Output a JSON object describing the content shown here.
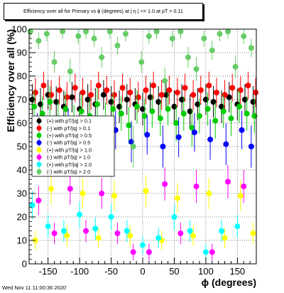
{
  "chart_data": {
    "type": "scatter",
    "title": "Efficiency over all for Primary vs ϕ (degrees) at | η | <= 1.0 at pT > 0.11",
    "xlabel": "ϕ (degrees)",
    "ylabel": "Efficiency over all (%)",
    "xlim": [
      -180,
      180
    ],
    "ylim": [
      0,
      100
    ],
    "x_ticks": [
      -150,
      -100,
      -50,
      0,
      50,
      100,
      150
    ],
    "y_ticks": [
      0,
      10,
      20,
      30,
      40,
      50,
      60,
      70,
      80,
      90,
      100
    ],
    "grid": true,
    "legend_position": "middle-left",
    "footer": "Wed Nov 11 11:00:36 2020",
    "series": [
      {
        "name": "(+) with pT/|q| > 0.1",
        "color": "#000000",
        "marker": "circle",
        "x": [
          -175,
          -162,
          -150,
          -137,
          -125,
          -112,
          -100,
          -87,
          -75,
          -62,
          -50,
          -37,
          -25,
          -12,
          0,
          12,
          25,
          37,
          50,
          62,
          75,
          87,
          100,
          112,
          125,
          137,
          150,
          162,
          175
        ],
        "y": [
          70,
          68,
          72,
          69,
          67,
          71,
          66,
          70,
          68,
          72,
          69,
          67,
          70,
          68,
          66,
          71,
          69,
          72,
          67,
          70,
          65,
          68,
          70,
          69,
          67,
          71,
          68,
          70,
          69
        ]
      },
      {
        "name": "(-) with pT/|q| > 0.1",
        "color": "#ff0000",
        "marker": "circle",
        "x": [
          -170,
          -157,
          -145,
          -132,
          -120,
          -107,
          -95,
          -82,
          -70,
          -57,
          -45,
          -32,
          -20,
          -7,
          5,
          17,
          30,
          42,
          55,
          67,
          80,
          92,
          105,
          117,
          130,
          142,
          155,
          167,
          179
        ],
        "y": [
          73,
          76,
          72,
          74,
          71,
          75,
          73,
          72,
          76,
          74,
          72,
          75,
          73,
          71,
          74,
          76,
          72,
          74,
          73,
          75,
          72,
          74,
          76,
          73,
          72,
          75,
          74,
          76,
          73
        ]
      },
      {
        "name": "(+) with pT/|q| > 0.5",
        "color": "#00cc00",
        "marker": "circle",
        "x": [
          -172,
          -159,
          -147,
          -134,
          -122,
          -109,
          -97,
          -84,
          -72,
          -59,
          -47,
          -34,
          -22,
          -9,
          3,
          15,
          28,
          40,
          53,
          65,
          78,
          90,
          103,
          115,
          128,
          140,
          153,
          165,
          177
        ],
        "y": [
          67,
          64,
          69,
          62,
          66,
          60,
          65,
          63,
          68,
          61,
          66,
          64,
          59,
          67,
          63,
          65,
          62,
          66,
          60,
          64,
          58,
          63,
          66,
          61,
          65,
          62,
          67,
          64,
          63
        ]
      },
      {
        "name": "(-) with pT/|q| > 0.5",
        "color": "#0000ff",
        "marker": "circle",
        "x": [
          -167,
          -143,
          -118,
          -93,
          -68,
          -43,
          -18,
          7,
          32,
          57,
          82,
          107,
          132,
          157,
          172
        ],
        "y": [
          56,
          54,
          58,
          55,
          53,
          57,
          52,
          55,
          50,
          54,
          56,
          53,
          51,
          57,
          50
        ]
      },
      {
        "name": "(+) with pT/|q| > 1.0",
        "color": "#ffff00",
        "marker": "circle",
        "x": [
          -170,
          -145,
          -120,
          -95,
          -70,
          -45,
          -20,
          5,
          30,
          55,
          80,
          105,
          130,
          155,
          175
        ],
        "y": [
          10,
          32,
          12,
          30,
          11,
          29,
          12,
          31,
          10,
          28,
          12,
          30,
          11,
          29,
          13
        ]
      },
      {
        "name": "(-) with pT/|q| > 1.0",
        "color": "#ff00ff",
        "marker": "circle",
        "x": [
          -165,
          -140,
          -115,
          -90,
          -65,
          -40,
          -15,
          10,
          35,
          60,
          85,
          110,
          135,
          160
        ],
        "y": [
          27,
          13,
          32,
          14,
          30,
          13,
          5,
          5,
          34,
          13,
          33,
          5,
          35,
          33
        ]
      },
      {
        "name": "(+) with pT/|q| > 2.0",
        "color": "#00ffff",
        "marker": "circle",
        "x": [
          -175,
          -150,
          -125,
          -100,
          -75,
          -50,
          -25,
          0,
          25,
          50,
          75,
          100,
          125,
          150
        ],
        "y": [
          25,
          16,
          14,
          21,
          15,
          20,
          14,
          8,
          11,
          20,
          14,
          5,
          14,
          16
        ]
      },
      {
        "name": "(-) with pT/|q| > 2.0",
        "color": "#66cc66",
        "marker": "circle",
        "x": [
          -178,
          -165,
          -152,
          -140,
          -127,
          -115,
          -102,
          -90,
          -77,
          -65,
          -52,
          -40,
          -27,
          -15,
          -2,
          10,
          22,
          35,
          47,
          60,
          72,
          85,
          97,
          110,
          122,
          135,
          147,
          160,
          172
        ],
        "y": [
          99,
          95,
          98,
          86,
          99,
          82,
          97,
          99,
          96,
          88,
          99,
          93,
          98,
          50,
          86,
          97,
          99,
          78,
          96,
          99,
          88,
          83,
          96,
          91,
          98,
          99,
          84,
          97,
          92
        ]
      }
    ]
  }
}
